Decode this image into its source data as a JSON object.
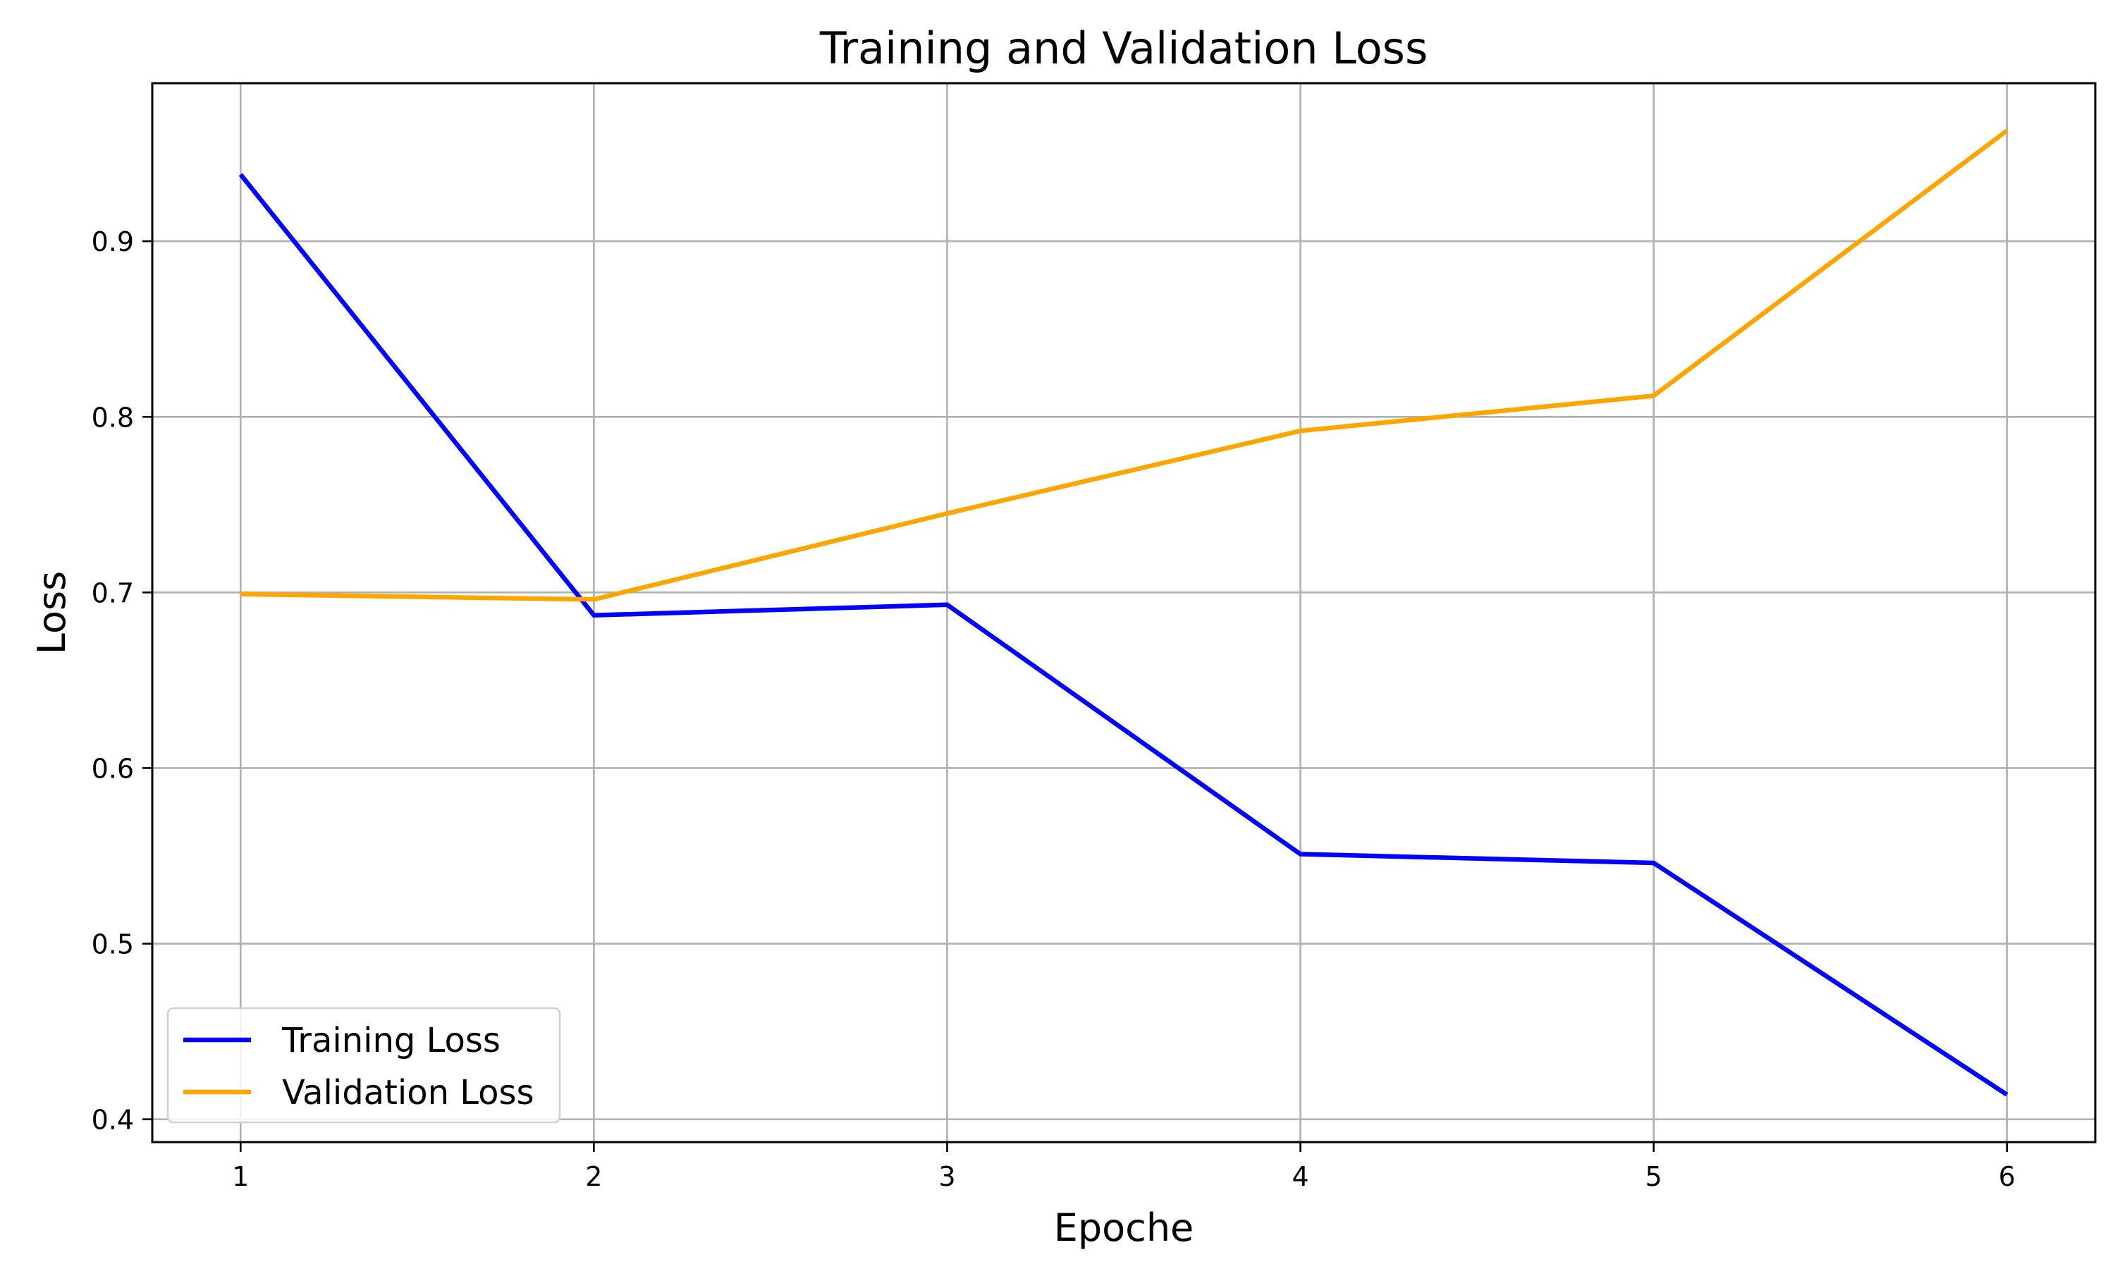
{
  "chart_data": {
    "type": "line",
    "title": "Training and Validation Loss",
    "xlabel": "Epoche",
    "ylabel": "Loss",
    "x": [
      1,
      2,
      3,
      4,
      5,
      6
    ],
    "xlim": [
      0.75,
      6.25
    ],
    "ylim": [
      0.387,
      0.99
    ],
    "xticks": [
      1,
      2,
      3,
      4,
      5,
      6
    ],
    "xtick_labels": [
      "1",
      "2",
      "3",
      "4",
      "5",
      "6"
    ],
    "yticks": [
      0.4,
      0.5,
      0.6,
      0.7,
      0.8,
      0.9
    ],
    "ytick_labels": [
      "0.4",
      "0.5",
      "0.6",
      "0.7",
      "0.8",
      "0.9"
    ],
    "grid": true,
    "legend_position": "lower-left",
    "series": [
      {
        "name": "Training Loss",
        "color": "#0000ff",
        "values": [
          0.938,
          0.687,
          0.693,
          0.551,
          0.546,
          0.414
        ]
      },
      {
        "name": "Validation Loss",
        "color": "#ffa500",
        "values": [
          0.699,
          0.696,
          0.745,
          0.792,
          0.812,
          0.963
        ]
      }
    ]
  }
}
